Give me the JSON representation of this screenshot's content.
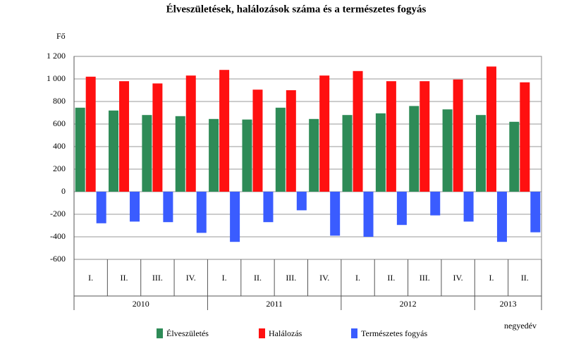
{
  "chart_data": {
    "type": "bar",
    "title": "Élveszületések, halálozások száma és a természetes fogyás",
    "ylabel": "Fő",
    "xlabel": "negyedév",
    "groups": [
      {
        "label": "2010",
        "categories": [
          "I.",
          "II.",
          "III.",
          "IV."
        ]
      },
      {
        "label": "2011",
        "categories": [
          "I.",
          "II.",
          "III.",
          "IV."
        ]
      },
      {
        "label": "2012",
        "categories": [
          "I.",
          "II.",
          "III.",
          "IV."
        ]
      },
      {
        "label": "2013",
        "categories": [
          "I.",
          "II."
        ]
      }
    ],
    "series": [
      {
        "name": "Élveszületés",
        "color": "#2e8b57",
        "values": [
          745,
          720,
          680,
          670,
          645,
          640,
          745,
          645,
          680,
          695,
          760,
          730,
          680,
          620
        ]
      },
      {
        "name": "Halálozás",
        "color": "#ff1010",
        "values": [
          1020,
          980,
          960,
          1030,
          1080,
          905,
          900,
          1030,
          1070,
          980,
          980,
          995,
          1110,
          970
        ]
      },
      {
        "name": "Természetes fogyás",
        "color": "#3a5cff",
        "values": [
          -280,
          -265,
          -270,
          -365,
          -445,
          -270,
          -165,
          -390,
          -400,
          -295,
          -210,
          -265,
          -445,
          -360
        ]
      }
    ],
    "ylim": [
      -600,
      1200
    ],
    "yticks": [
      -600,
      -400,
      -200,
      0,
      200,
      400,
      600,
      800,
      {
        "value": 1000,
        "label": "1 000"
      },
      {
        "value": 1200,
        "label": "1 200"
      }
    ],
    "grid": true
  }
}
